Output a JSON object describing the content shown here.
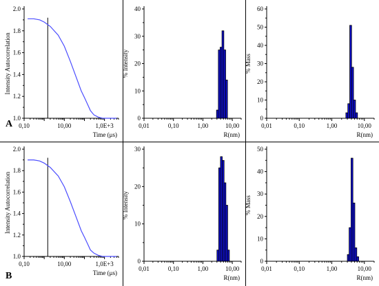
{
  "chart_data": [
    {
      "id": "A-autocorrelation",
      "type": "line",
      "row_label": "A",
      "xlabel": "Time (μs)",
      "ylabel": "Intensity Autocorrelation",
      "x_scale": "log",
      "xlim": [
        0.1,
        5000
      ],
      "ylim": [
        1.0,
        2.0
      ],
      "x_ticks": [
        "0,10",
        "10,00",
        "1,0E+3"
      ],
      "x_tick_values": [
        0.1,
        10,
        1000
      ],
      "y_ticks": [
        "1.0",
        "1.2",
        "1.4",
        "1.6",
        "1.8",
        "2.0"
      ],
      "y_tick_values": [
        1.0,
        1.2,
        1.4,
        1.6,
        1.8,
        2.0
      ],
      "cursor_x": 1.5,
      "curve_color": "#4a4cff",
      "series": [
        {
          "x": [
            0.15,
            0.3,
            0.6,
            1,
            2,
            5,
            10,
            20,
            40,
            70,
            100,
            150,
            200,
            300,
            500,
            800,
            1500,
            4000
          ],
          "y": [
            1.91,
            1.91,
            1.9,
            1.88,
            1.84,
            1.76,
            1.66,
            1.52,
            1.37,
            1.25,
            1.19,
            1.12,
            1.07,
            1.03,
            1.01,
            1.0,
            1.0,
            1.0
          ]
        }
      ]
    },
    {
      "id": "A-intensity",
      "type": "bar",
      "xlabel": "R(nm)",
      "ylabel": "% Intensity",
      "x_scale": "log",
      "xlim": [
        0.01,
        20
      ],
      "ylim": [
        0,
        40
      ],
      "x_ticks": [
        "0,01",
        "0,10",
        "1,00",
        "10,00"
      ],
      "x_tick_values": [
        0.01,
        0.1,
        1,
        10
      ],
      "y_ticks": [
        "0",
        "10",
        "20",
        "30",
        "40"
      ],
      "y_tick_values": [
        0,
        10,
        20,
        30,
        40
      ],
      "bar_color": "#1010d0",
      "bins": [
        {
          "x0": 2.9,
          "x1": 3.35,
          "v": 3
        },
        {
          "x0": 3.35,
          "x1": 3.85,
          "v": 25
        },
        {
          "x0": 3.85,
          "x1": 4.45,
          "v": 26
        },
        {
          "x0": 4.45,
          "x1": 5.15,
          "v": 32
        },
        {
          "x0": 5.15,
          "x1": 5.95,
          "v": 25
        },
        {
          "x0": 5.95,
          "x1": 6.85,
          "v": 14
        }
      ]
    },
    {
      "id": "A-mass",
      "type": "bar",
      "xlabel": "R(nm)",
      "ylabel": "% Mass",
      "x_scale": "log",
      "xlim": [
        0.01,
        20
      ],
      "ylim": [
        0,
        60
      ],
      "x_ticks": [
        "0,01",
        "0,10",
        "1,00",
        "10,00"
      ],
      "x_tick_values": [
        0.01,
        0.1,
        1,
        10
      ],
      "y_ticks": [
        "0",
        "10",
        "20",
        "30",
        "40",
        "50",
        "60"
      ],
      "y_tick_values": [
        0,
        10,
        20,
        30,
        40,
        50,
        60
      ],
      "bar_color": "#1010d0",
      "bins": [
        {
          "x0": 2.7,
          "x1": 3.1,
          "v": 3
        },
        {
          "x0": 3.1,
          "x1": 3.55,
          "v": 8
        },
        {
          "x0": 3.55,
          "x1": 4.05,
          "v": 51
        },
        {
          "x0": 4.05,
          "x1": 4.65,
          "v": 28
        },
        {
          "x0": 4.65,
          "x1": 5.35,
          "v": 10
        },
        {
          "x0": 5.35,
          "x1": 6.15,
          "v": 3
        }
      ]
    },
    {
      "id": "B-autocorrelation",
      "type": "line",
      "row_label": "B",
      "xlabel": "Time (μs)",
      "ylabel": "Intensity Autocorrelation",
      "x_scale": "log",
      "xlim": [
        0.1,
        5000
      ],
      "ylim": [
        1.0,
        2.0
      ],
      "x_ticks": [
        "0,10",
        "10,00",
        "1,0E+3"
      ],
      "x_tick_values": [
        0.1,
        10,
        1000
      ],
      "y_ticks": [
        "1.0",
        "1.2",
        "1.4",
        "1.6",
        "1.8",
        "2.0"
      ],
      "y_tick_values": [
        1.0,
        1.2,
        1.4,
        1.6,
        1.8,
        2.0
      ],
      "cursor_x": 1.5,
      "curve_color": "#4a4cff",
      "series": [
        {
          "x": [
            0.15,
            0.3,
            0.6,
            1,
            2,
            5,
            10,
            20,
            40,
            70,
            100,
            150,
            200,
            300,
            500,
            800,
            1500,
            4000
          ],
          "y": [
            1.9,
            1.9,
            1.89,
            1.87,
            1.83,
            1.75,
            1.65,
            1.51,
            1.36,
            1.24,
            1.18,
            1.11,
            1.06,
            1.03,
            1.01,
            1.0,
            1.0,
            1.0
          ]
        }
      ]
    },
    {
      "id": "B-intensity",
      "type": "bar",
      "xlabel": "R(nm)",
      "ylabel": "% Intensity",
      "x_scale": "log",
      "xlim": [
        0.01,
        20
      ],
      "ylim": [
        0,
        30
      ],
      "x_ticks": [
        "0,01",
        "0,10",
        "1,00",
        "10,00"
      ],
      "x_tick_values": [
        0.01,
        0.1,
        1,
        10
      ],
      "y_ticks": [
        "0",
        "10",
        "20",
        "30"
      ],
      "y_tick_values": [
        0,
        10,
        20,
        30
      ],
      "bar_color": "#1010d0",
      "bins": [
        {
          "x0": 3.0,
          "x1": 3.45,
          "v": 3
        },
        {
          "x0": 3.45,
          "x1": 3.95,
          "v": 25
        },
        {
          "x0": 3.95,
          "x1": 4.55,
          "v": 28
        },
        {
          "x0": 4.55,
          "x1": 5.25,
          "v": 27
        },
        {
          "x0": 5.25,
          "x1": 6.05,
          "v": 21
        },
        {
          "x0": 6.05,
          "x1": 6.95,
          "v": 15
        },
        {
          "x0": 6.95,
          "x1": 7.95,
          "v": 3
        }
      ]
    },
    {
      "id": "B-mass",
      "type": "bar",
      "xlabel": "R(nm)",
      "ylabel": "% Mass",
      "x_scale": "log",
      "xlim": [
        0.01,
        20
      ],
      "ylim": [
        0,
        50
      ],
      "x_ticks": [
        "0,01",
        "0,10",
        "1,00",
        "10,00"
      ],
      "x_tick_values": [
        0.01,
        0.1,
        1,
        10
      ],
      "y_ticks": [
        "0",
        "10",
        "20",
        "30",
        "40",
        "50"
      ],
      "y_tick_values": [
        0,
        10,
        20,
        30,
        40,
        50
      ],
      "bar_color": "#1010d0",
      "bins": [
        {
          "x0": 3.0,
          "x1": 3.4,
          "v": 3
        },
        {
          "x0": 3.4,
          "x1": 3.9,
          "v": 15
        },
        {
          "x0": 3.9,
          "x1": 4.45,
          "v": 46
        },
        {
          "x0": 4.45,
          "x1": 5.1,
          "v": 26
        },
        {
          "x0": 5.1,
          "x1": 5.85,
          "v": 6
        },
        {
          "x0": 5.85,
          "x1": 6.7,
          "v": 2
        }
      ]
    }
  ]
}
